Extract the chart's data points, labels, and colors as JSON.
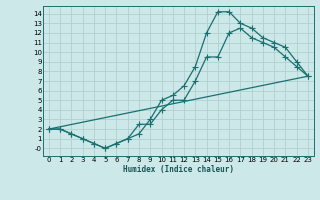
{
  "xlabel": "Humidex (Indice chaleur)",
  "ylabel": "",
  "bg_color": "#cce8e8",
  "grid_color": "#b0d0d0",
  "line_color": "#1a7070",
  "xlim": [
    -0.5,
    23.5
  ],
  "ylim": [
    -0.8,
    14.8
  ],
  "xticks": [
    0,
    1,
    2,
    3,
    4,
    5,
    6,
    7,
    8,
    9,
    10,
    11,
    12,
    13,
    14,
    15,
    16,
    17,
    18,
    19,
    20,
    21,
    22,
    23
  ],
  "yticks": [
    0,
    1,
    2,
    3,
    4,
    5,
    6,
    7,
    8,
    9,
    10,
    11,
    12,
    13,
    14
  ],
  "line1_x": [
    0,
    1,
    2,
    3,
    4,
    5,
    6,
    7,
    8,
    9,
    10,
    11,
    12,
    13,
    14,
    15,
    16,
    17,
    18,
    19,
    20,
    21,
    22,
    23
  ],
  "line1_y": [
    2,
    2,
    1.5,
    1,
    0.5,
    0,
    0.5,
    1,
    1.5,
    3,
    5,
    5.5,
    6.5,
    8.5,
    12,
    14.2,
    14.2,
    13,
    12.5,
    11.5,
    11,
    10.5,
    9,
    7.5
  ],
  "line2_x": [
    0,
    1,
    2,
    3,
    4,
    5,
    6,
    7,
    8,
    9,
    10,
    11,
    12,
    13,
    14,
    15,
    16,
    17,
    18,
    19,
    20,
    21,
    22,
    23
  ],
  "line2_y": [
    2,
    2,
    1.5,
    1,
    0.5,
    0,
    0.5,
    1,
    2.5,
    2.5,
    4,
    5,
    5,
    7,
    9.5,
    9.5,
    12,
    12.5,
    11.5,
    11,
    10.5,
    9.5,
    8.5,
    7.5
  ],
  "line3_x": [
    0,
    23
  ],
  "line3_y": [
    2,
    7.5
  ]
}
